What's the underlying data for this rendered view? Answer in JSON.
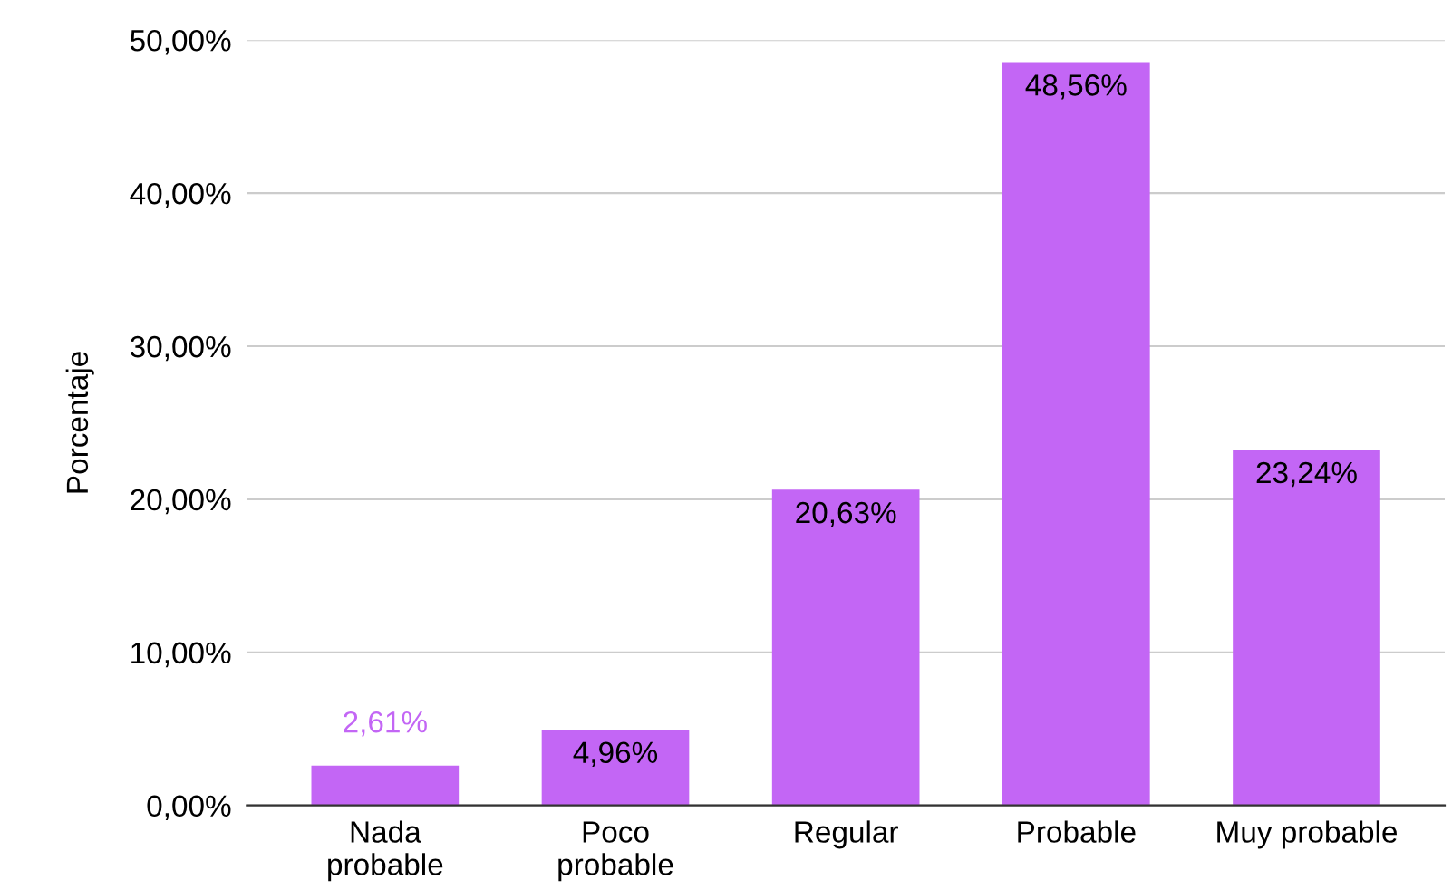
{
  "chart_data": {
    "type": "bar",
    "ylabel": "Porcentaje",
    "categories": [
      "Nada\nprobable",
      "Poco\nprobable",
      "Regular",
      "Probable",
      "Muy probable"
    ],
    "values": [
      2.61,
      4.96,
      20.63,
      48.56,
      23.24
    ],
    "value_labels": [
      "2,61%",
      "4,96%",
      "20,63%",
      "48,56%",
      "23,24%"
    ],
    "color": "#c366f5",
    "ylim": [
      0,
      50
    ],
    "yticks": [
      {
        "value": 0,
        "label": "0,00%"
      },
      {
        "value": 10,
        "label": "10,00%"
      },
      {
        "value": 20,
        "label": "20,00%"
      },
      {
        "value": 30,
        "label": "30,00%"
      },
      {
        "value": 40,
        "label": "40,00%"
      },
      {
        "value": 50,
        "label": "50,00%"
      }
    ],
    "grid": "y",
    "legend": false
  }
}
